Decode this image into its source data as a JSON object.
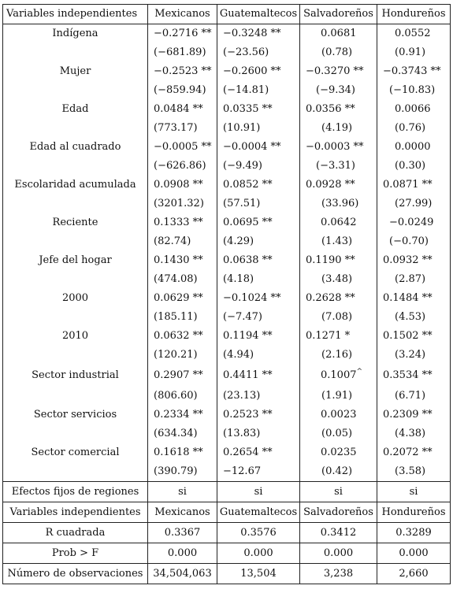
{
  "header": [
    "Variables independientes",
    "Mexicanos",
    "Guatemaltecos",
    "Salvadoreños",
    "Hondureños"
  ],
  "rows": [
    {
      "name": "Indígena",
      "coef": [
        "−0.2716 **",
        "−0.3248 **",
        "0.0681",
        "0.0552"
      ],
      "se": [
        "(−681.89)",
        "(−23.56)",
        "(0.78)",
        "(0.91)"
      ]
    },
    {
      "name": "Mujer",
      "coef": [
        "−0.2523 **",
        "−0.2600 **",
        "−0.3270 **",
        "−0.3743 **"
      ],
      "se": [
        "(−859.94)",
        "(−14.81)",
        "(−9.34)",
        "(−10.83)"
      ]
    },
    {
      "name": "Edad",
      "coef": [
        "0.0484 **",
        "0.0335 **",
        "0.0356 **",
        "0.0066"
      ],
      "se": [
        "(773.17)",
        "(10.91)",
        "(4.19)",
        "(0.76)"
      ]
    },
    {
      "name": "Edad al cuadrado",
      "coef": [
        "−0.0005 **",
        "−0.0004 **",
        "−0.0003 **",
        "0.0000"
      ],
      "se": [
        "(−626.86)",
        "(−9.49)",
        "(−3.31)",
        "(0.30)"
      ]
    },
    {
      "name": "Escolaridad acumulada",
      "coef": [
        "0.0908 **",
        "0.0852 **",
        "0.0928 **",
        "0.0871 **"
      ],
      "se": [
        "(3201.32)",
        "(57.51)",
        "(33.96)",
        "(27.99)"
      ]
    },
    {
      "name": "Reciente",
      "coef": [
        "0.1333 **",
        "0.0695 **",
        "0.0642",
        "−0.0249"
      ],
      "se": [
        "(82.74)",
        "(4.29)",
        "(1.43)",
        "(−0.70)"
      ]
    },
    {
      "name": "Jefe del hogar",
      "coef": [
        "0.1430 **",
        "0.0638 **",
        "0.1190 **",
        "0.0932 **"
      ],
      "se": [
        "(474.08)",
        "(4.18)",
        "(3.48)",
        "(2.87)"
      ]
    },
    {
      "name": "2000",
      "coef": [
        "0.0629 **",
        "−0.1024 **",
        "0.2628 **",
        "0.1484 **"
      ],
      "se": [
        "(185.11)",
        "(−7.47)",
        "(7.08)",
        "(4.53)"
      ]
    },
    {
      "name": "2010",
      "coef": [
        "0.0632 **",
        "0.1194 **",
        "0.1271 *",
        "0.1502 **"
      ],
      "se": [
        "(120.21)",
        "(4.94)",
        "(2.16)",
        "(3.24)"
      ]
    },
    {
      "name": "Sector industrial",
      "coef": [
        "0.2907 **",
        "0.4411 **",
        "0.1007",
        "0.3534 **"
      ],
      "coef_sup": [
        "",
        "",
        "^",
        ""
      ],
      "se": [
        "(806.60)",
        "(23.13)",
        "(1.91)",
        "(6.71)"
      ]
    },
    {
      "name": "Sector servicios",
      "coef": [
        "0.2334 **",
        "0.2523 **",
        "0.0023",
        "0.2309 **"
      ],
      "se": [
        "(634.34)",
        "(13.83)",
        "(0.05)",
        "(4.38)"
      ]
    },
    {
      "name": "Sector comercial",
      "coef": [
        "0.1618 **",
        "0.2654 **",
        "0.0235",
        "0.2072 **"
      ],
      "se": [
        "(390.79)",
        "−12.67",
        "(0.42)",
        "(3.58)"
      ]
    }
  ],
  "fixed_effects": {
    "name": "Efectos fijos de regiones",
    "values": [
      "si",
      "si",
      "si",
      "si"
    ]
  },
  "header2": [
    "Variables independientes",
    "Mexicanos",
    "Guatemaltecos",
    "Salvadoreños",
    "Hondureños"
  ],
  "stats": [
    {
      "name": "R cuadrada",
      "values": [
        "0.3367",
        "0.3576",
        "0.3412",
        "0.3289"
      ]
    },
    {
      "name": "Prob > F",
      "values": [
        "0.000",
        "0.000",
        "0.000",
        "0.000"
      ]
    },
    {
      "name": "Número de observaciones",
      "values": [
        "34,504,063",
        "13,504",
        "3,238",
        "2,660"
      ]
    }
  ]
}
